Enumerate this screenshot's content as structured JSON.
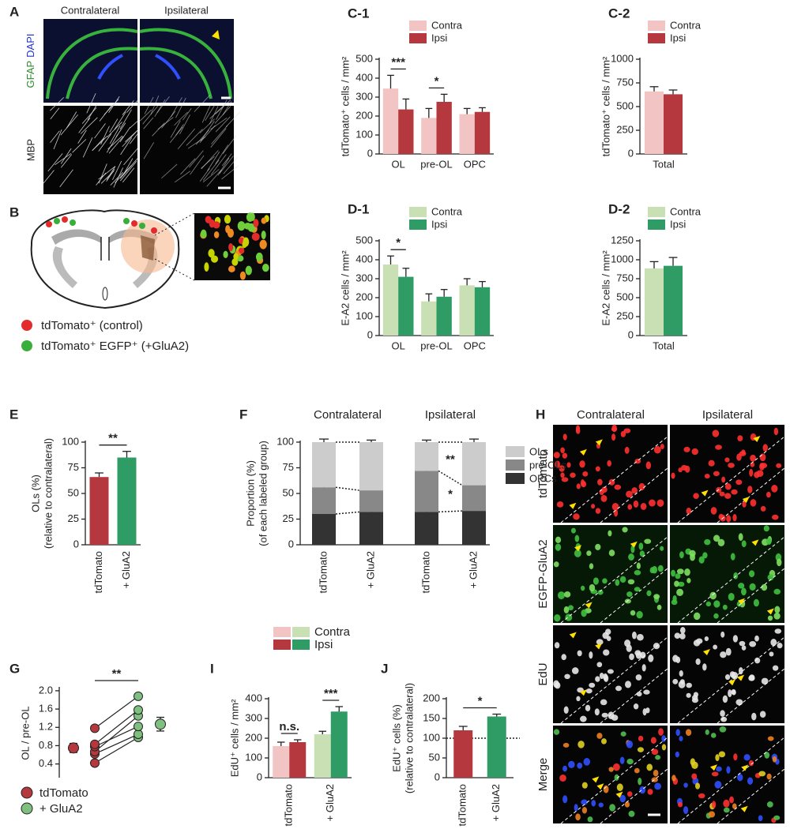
{
  "chart_data": [
    {
      "type": "bar",
      "title": "C-1",
      "ylabel": "tdTomato⁺ cells / mm²",
      "categories": [
        "OL",
        "pre-OL",
        "OPC"
      ],
      "series": [
        {
          "name": "Contra",
          "color": "#f2c4c4",
          "values": [
            345,
            190,
            210
          ],
          "errors": [
            70,
            50,
            30
          ]
        },
        {
          "name": "Ipsi",
          "color": "#b5383e",
          "values": [
            235,
            275,
            222
          ],
          "errors": [
            55,
            40,
            22
          ]
        }
      ],
      "ylim": [
        0,
        500
      ],
      "yticks": [
        0,
        100,
        200,
        300,
        400,
        500
      ],
      "significance": [
        {
          "label": "***",
          "from": 0,
          "to": 0
        },
        {
          "label": "*",
          "from": 1,
          "to": 1
        }
      ]
    },
    {
      "type": "bar",
      "title": "C-2",
      "ylabel": "tdTomato⁺ cells / mm²",
      "categories": [
        "Total"
      ],
      "series": [
        {
          "name": "Contra",
          "color": "#f2c4c4",
          "values": [
            660
          ],
          "errors": [
            50
          ]
        },
        {
          "name": "Ipsi",
          "color": "#b5383e",
          "values": [
            630
          ],
          "errors": [
            45
          ]
        }
      ],
      "ylim": [
        0,
        1000
      ],
      "yticks": [
        0,
        250,
        500,
        750,
        1000
      ]
    },
    {
      "type": "bar",
      "title": "D-1",
      "ylabel": "E-A2 cells / mm²",
      "categories": [
        "OL",
        "pre-OL",
        "OPC"
      ],
      "series": [
        {
          "name": "Contra",
          "color": "#c8e0b4",
          "values": [
            375,
            180,
            265
          ],
          "errors": [
            45,
            40,
            35
          ]
        },
        {
          "name": "Ipsi",
          "color": "#2f9b65",
          "values": [
            310,
            205,
            255
          ],
          "errors": [
            45,
            38,
            30
          ]
        }
      ],
      "ylim": [
        0,
        500
      ],
      "yticks": [
        0,
        100,
        200,
        300,
        400,
        500
      ],
      "significance": [
        {
          "label": "*",
          "from": 0,
          "to": 0
        }
      ]
    },
    {
      "type": "bar",
      "title": "D-2",
      "ylabel": "E-A2 cells / mm²",
      "categories": [
        "Total"
      ],
      "series": [
        {
          "name": "Contra",
          "color": "#c8e0b4",
          "values": [
            885
          ],
          "errors": [
            90
          ]
        },
        {
          "name": "Ipsi",
          "color": "#2f9b65",
          "values": [
            920
          ],
          "errors": [
            110
          ]
        }
      ],
      "ylim": [
        0,
        1250
      ],
      "yticks": [
        0,
        250,
        500,
        750,
        1000,
        1250
      ]
    },
    {
      "type": "bar",
      "title": "E",
      "ylabel": [
        "OLs (%)",
        "(relative to contralateral)"
      ],
      "categories": [
        "tdTomato",
        "+ GluA2"
      ],
      "values": [
        66,
        85
      ],
      "errors": [
        4,
        6
      ],
      "colors": [
        "#b5383e",
        "#2f9b65"
      ],
      "ylim": [
        0,
        100
      ],
      "yticks": [
        0,
        25,
        50,
        75,
        100
      ],
      "significance": [
        {
          "label": "**",
          "from": 0,
          "to": 1
        }
      ]
    },
    {
      "type": "stacked_bar",
      "title": "F",
      "ylabel": [
        "Proportion (%)",
        "(of each labeled group)"
      ],
      "groups": [
        "Contralateral",
        "Ipsilateral"
      ],
      "categories": [
        "tdTomato",
        "+ GluA2",
        "tdTomato",
        "+ GluA2"
      ],
      "series": [
        {
          "name": "OPCs",
          "color": "#333333",
          "values": [
            30,
            32,
            32,
            33
          ],
          "errors": [
            3,
            2,
            2,
            2
          ]
        },
        {
          "name": "pre-OLs",
          "color": "#888888",
          "values": [
            26,
            21,
            40,
            25
          ],
          "errors": [
            4,
            2,
            3,
            4
          ]
        },
        {
          "name": "OLs",
          "color": "#cccccc",
          "values": [
            44,
            47,
            28,
            42
          ],
          "errors": [
            3,
            2,
            2,
            3
          ]
        }
      ],
      "ylim": [
        0,
        100
      ],
      "yticks": [
        0,
        25,
        50,
        75,
        100
      ],
      "significance": [
        {
          "label": "**",
          "from": 2,
          "to": 3,
          "series": 2
        },
        {
          "label": "*",
          "from": 2,
          "to": 3,
          "series": 1
        }
      ]
    },
    {
      "type": "paired_scatter",
      "title": "G",
      "ylabel": "OL / pre-OL",
      "series": [
        {
          "name": "tdTomato",
          "color": "#b5383e",
          "values": [
            0.42,
            0.62,
            0.67,
            0.78,
            0.83,
            1.18
          ],
          "mean": 0.75,
          "error": 0.1
        },
        {
          "name": "+ GluA2",
          "color": "#7fbf7f",
          "values": [
            0.98,
            1.05,
            1.45,
            1.22,
            1.58,
            1.88
          ],
          "mean": 1.27,
          "error": 0.15
        }
      ],
      "ylim": [
        0.1,
        2.05
      ],
      "yticks": [
        0.4,
        0.8,
        1.2,
        1.6,
        {
          "value": 2,
          "label": "2.0"
        }
      ],
      "significance": [
        {
          "label": "**",
          "from": 0,
          "to": 1
        }
      ]
    },
    {
      "type": "bar",
      "title": "I",
      "ylabel": "EdU⁺ cells / mm²",
      "categories": [
        "tdTomato",
        "+ GluA2"
      ],
      "series": [
        {
          "name": "Contra",
          "colors": [
            "#f2c4c4",
            "#c8e0b4"
          ],
          "values": [
            160,
            220
          ],
          "errors": [
            20,
            15
          ]
        },
        {
          "name": "Ipsi",
          "colors": [
            "#b5383e",
            "#2f9b65"
          ],
          "values": [
            180,
            335
          ],
          "errors": [
            12,
            25
          ]
        }
      ],
      "ylim": [
        0,
        400
      ],
      "yticks": [
        0,
        100,
        200,
        300,
        400
      ],
      "significance": [
        {
          "label": "n.s.",
          "from": 0,
          "to": 0
        },
        {
          "label": "***",
          "from": 1,
          "to": 1
        }
      ]
    },
    {
      "type": "bar",
      "title": "J",
      "ylabel": [
        "EdU⁺ cells (%)",
        "(relative to contralateral)"
      ],
      "categories": [
        "tdTomato",
        "+ GluA2"
      ],
      "values": [
        120,
        155
      ],
      "errors": [
        10,
        6
      ],
      "colors": [
        "#b5383e",
        "#2f9b65"
      ],
      "reference_line": 100,
      "ylim": [
        0,
        200
      ],
      "yticks": [
        0,
        50,
        100,
        150,
        200
      ],
      "significance": [
        {
          "label": "*",
          "from": 0,
          "to": 1
        }
      ]
    }
  ],
  "image_panels": {
    "A": {
      "label": "A",
      "columns": [
        "Contralateral",
        "Ipsilateral"
      ],
      "row_labels": [
        "GFAP",
        "DAPI",
        "MBP"
      ]
    },
    "B": {
      "label": "B",
      "legend": [
        "tdTomato⁺ (control)",
        "tdTomato⁺ EGFP⁺ (+GluA2)"
      ]
    },
    "H": {
      "label": "H",
      "columns": [
        "Contralateral",
        "Ipsilateral"
      ],
      "row_labels": [
        "tdTomato",
        "EGFP-GluA2",
        "EdU",
        "Merge"
      ]
    }
  }
}
